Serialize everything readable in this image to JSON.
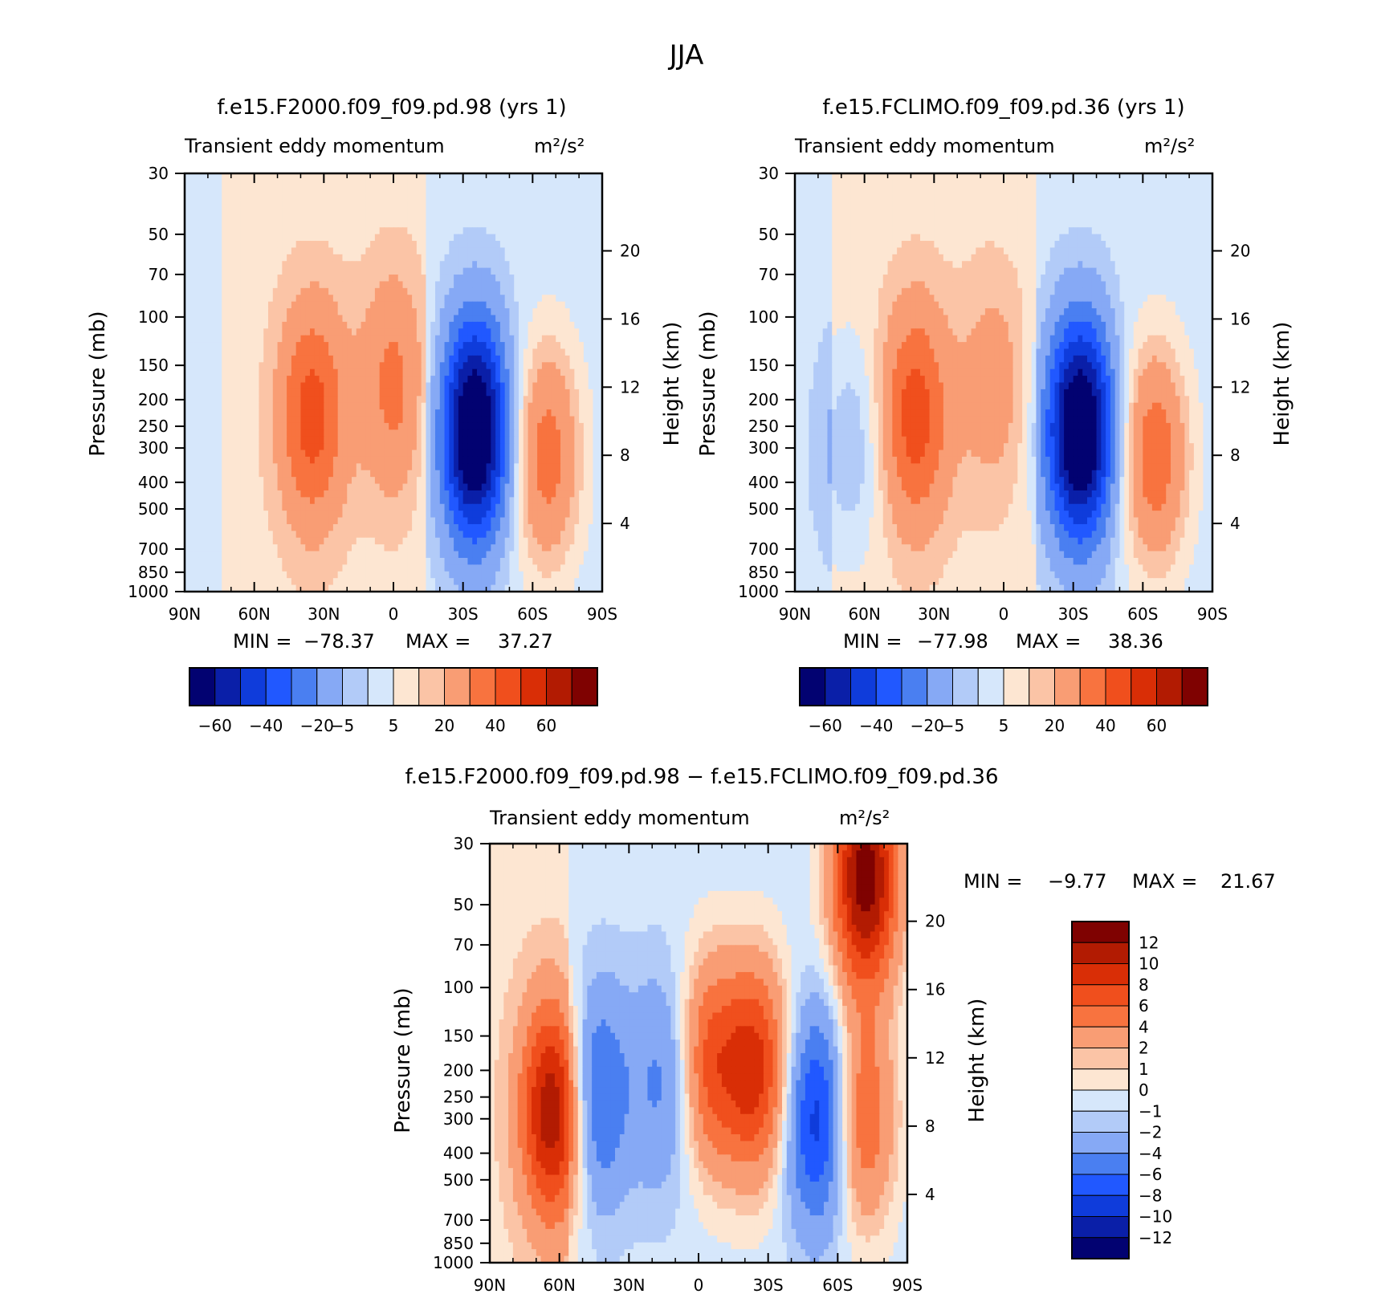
{
  "figure_title": "JJA",
  "chart_data": [
    {
      "type": "heatmap",
      "id": "p1",
      "title": "f.e15.F2000.f09_f09.pd.98 (yrs 1)",
      "subtitle": "Transient eddy momentum",
      "units": "m²/s²",
      "ylabel": "Pressure (mb)",
      "ylabel_right": "Height (km)",
      "x_ticks": [
        "90N",
        "60N",
        "30N",
        "0",
        "30S",
        "60S",
        "90S"
      ],
      "y_ticks": [
        "30",
        "50",
        "70",
        "100",
        "150",
        "200",
        "250",
        "300",
        "400",
        "500",
        "700",
        "850",
        "1000"
      ],
      "height_ticks": [
        "20",
        "16",
        "12",
        "8",
        "4"
      ],
      "min_label": "MIN =",
      "min_value": "−78.37",
      "max_label": "MAX =",
      "max_value": "37.27",
      "colorbar_levels": [
        "−60",
        "−40",
        "−20",
        "−5",
        "5",
        "20",
        "40",
        "60"
      ],
      "features": [
        {
          "lat": 35,
          "p": 230,
          "value": 32
        },
        {
          "lat": 0,
          "p": 180,
          "value": 20
        },
        {
          "lat": -35,
          "p": 260,
          "value": -78
        },
        {
          "lat": -66,
          "p": 320,
          "value": 28
        },
        {
          "lat": 80,
          "p": 120,
          "value": -2
        }
      ]
    },
    {
      "type": "heatmap",
      "id": "p2",
      "title": "f.e15.FCLIMO.f09_f09.pd.36 (yrs 1)",
      "subtitle": "Transient eddy momentum",
      "units": "m²/s²",
      "ylabel": "Pressure (mb)",
      "ylabel_right": "Height (km)",
      "x_ticks": [
        "90N",
        "60N",
        "30N",
        "0",
        "30S",
        "60S",
        "90S"
      ],
      "y_ticks": [
        "30",
        "50",
        "70",
        "100",
        "150",
        "200",
        "250",
        "300",
        "400",
        "500",
        "700",
        "850",
        "1000"
      ],
      "height_ticks": [
        "20",
        "16",
        "12",
        "8",
        "4"
      ],
      "min_label": "MIN =",
      "min_value": "−77.98",
      "max_label": "MAX =",
      "max_value": "38.36",
      "colorbar_levels": [
        "−60",
        "−40",
        "−20",
        "−5",
        "5",
        "20",
        "40",
        "60"
      ],
      "features": [
        {
          "lat": 38,
          "p": 230,
          "value": 33
        },
        {
          "lat": 5,
          "p": 180,
          "value": 12
        },
        {
          "lat": -33,
          "p": 260,
          "value": -78
        },
        {
          "lat": -65,
          "p": 320,
          "value": 30
        },
        {
          "lat": 66,
          "p": 300,
          "value": -12
        }
      ]
    },
    {
      "type": "heatmap",
      "id": "p3",
      "title": "f.e15.F2000.f09_f09.pd.98 − f.e15.FCLIMO.f09_f09.pd.36",
      "subtitle": "Transient eddy momentum",
      "units": "m²/s²",
      "ylabel": "Pressure (mb)",
      "ylabel_right": "Height (km)",
      "x_ticks": [
        "90N",
        "60N",
        "30N",
        "0",
        "30S",
        "60S",
        "90S"
      ],
      "y_ticks": [
        "30",
        "50",
        "70",
        "100",
        "150",
        "200",
        "250",
        "300",
        "400",
        "500",
        "700",
        "850",
        "1000"
      ],
      "height_ticks": [
        "20",
        "16",
        "12",
        "8",
        "4"
      ],
      "min_label": "MIN =",
      "min_value": "−9.77",
      "max_label": "MAX =",
      "max_value": "21.67",
      "colorbar_levels": [
        "12",
        "10",
        "8",
        "6",
        "4",
        "2",
        "1",
        "0",
        "−1",
        "−2",
        "−4",
        "−6",
        "−8",
        "−10",
        "−12"
      ],
      "features": [
        {
          "lat": 62,
          "p": 280,
          "value": 12
        },
        {
          "lat": 45,
          "p": 250,
          "value": -7
        },
        {
          "lat": 15,
          "p": 220,
          "value": -4
        },
        {
          "lat": -5,
          "p": 190,
          "value": 7
        },
        {
          "lat": -25,
          "p": 200,
          "value": 9
        },
        {
          "lat": -52,
          "p": 300,
          "value": -9
        },
        {
          "lat": -72,
          "p": 40,
          "value": 14
        },
        {
          "lat": -70,
          "p": 300,
          "value": 7
        }
      ]
    }
  ],
  "colors": {
    "diverging_12": [
      "#020271",
      "#0a1fa8",
      "#0f3cdb",
      "#2158ff",
      "#4a7ff1",
      "#86a9f5",
      "#b2cbf8",
      "#d6e7fb",
      "#fde6d2",
      "#fbc4a6",
      "#f99d74",
      "#f8733f",
      "#f04f1d",
      "#d92e06",
      "#b21b02",
      "#7f0201"
    ],
    "diverging_16": [
      "#7f0201",
      "#b21b02",
      "#d92e06",
      "#f04f1d",
      "#f8733f",
      "#f99d74",
      "#fbc4a6",
      "#fde6d2",
      "#d6e7fb",
      "#b2cbf8",
      "#86a9f5",
      "#4a7ff1",
      "#2158ff",
      "#0f3cdb",
      "#0a1fa8",
      "#020271"
    ]
  }
}
